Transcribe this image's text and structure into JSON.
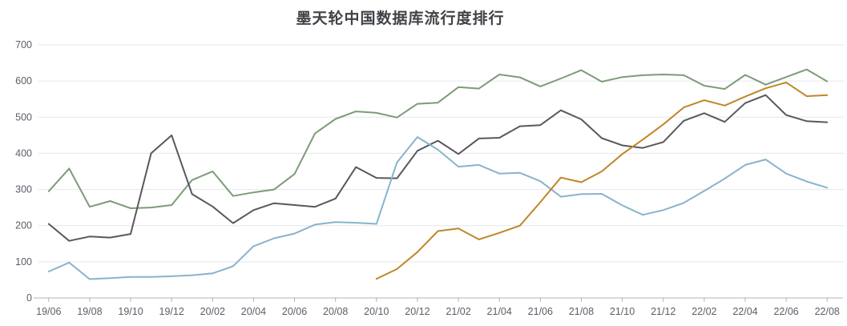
{
  "chart": {
    "background": "#ffffff",
    "title_color": "#404347",
    "grid_color": "#e4e7ec",
    "axis_line_color": "#b0b3b8",
    "axis_label_color": "#5b5e66",
    "line_width": 2
  },
  "chart_data": {
    "type": "line",
    "title": "墨天轮中国数据库流行度排行",
    "xlabel": "",
    "ylabel": "",
    "ylim": [
      0,
      700
    ],
    "y_ticks": [
      0,
      100,
      200,
      300,
      400,
      500,
      600,
      700
    ],
    "grid": true,
    "legend": false,
    "x": [
      "19/06",
      "19/07",
      "19/08",
      "19/09",
      "19/10",
      "19/11",
      "19/12",
      "20/01",
      "20/02",
      "20/03",
      "20/04",
      "20/05",
      "20/06",
      "20/07",
      "20/08",
      "20/09",
      "20/10",
      "20/11",
      "20/12",
      "21/01",
      "21/02",
      "21/03",
      "21/04",
      "21/05",
      "21/06",
      "21/07",
      "21/08",
      "21/09",
      "21/10",
      "21/11",
      "21/12",
      "22/01",
      "22/02",
      "22/03",
      "22/04",
      "22/05",
      "22/06",
      "22/07",
      "22/08"
    ],
    "x_axis_visible_labels": [
      "19/06",
      "19/08",
      "19/10",
      "19/12",
      "20/02",
      "20/04",
      "20/06",
      "20/08",
      "20/10",
      "20/12",
      "21/02",
      "21/04",
      "21/06",
      "21/08",
      "21/10",
      "21/12",
      "22/02",
      "22/04",
      "22/06",
      "22/08"
    ],
    "series": [
      {
        "name": "green-series",
        "color": "#7d9b78",
        "values": [
          295,
          358,
          252,
          268,
          248,
          250,
          257,
          326,
          350,
          282,
          292,
          300,
          343,
          455,
          495,
          516,
          512,
          499,
          537,
          540,
          583,
          579,
          618,
          610,
          585,
          607,
          630,
          598,
          611,
          616,
          618,
          616,
          587,
          578,
          617,
          590,
          611,
          632,
          599
        ]
      },
      {
        "name": "dark-gray-series",
        "color": "#58585f",
        "values": [
          205,
          158,
          170,
          167,
          177,
          400,
          450,
          287,
          253,
          207,
          243,
          262,
          257,
          252,
          275,
          362,
          332,
          331,
          407,
          435,
          398,
          441,
          443,
          475,
          478,
          519,
          494,
          442,
          422,
          415,
          431,
          490,
          511,
          487,
          539,
          561,
          506,
          489,
          486
        ]
      },
      {
        "name": "light-blue-series",
        "color": "#88b4ca",
        "values": [
          73,
          98,
          52,
          55,
          58,
          58,
          60,
          63,
          68,
          88,
          143,
          165,
          178,
          203,
          210,
          208,
          205,
          375,
          445,
          410,
          363,
          368,
          344,
          346,
          323,
          280,
          287,
          288,
          256,
          230,
          243,
          263,
          296,
          330,
          368,
          383,
          344,
          322,
          305
        ]
      },
      {
        "name": "orange-series",
        "color": "#c08628",
        "values": [
          null,
          null,
          null,
          null,
          null,
          null,
          null,
          null,
          null,
          null,
          null,
          null,
          null,
          null,
          null,
          null,
          53,
          80,
          127,
          185,
          192,
          162,
          180,
          200,
          265,
          333,
          320,
          350,
          398,
          438,
          480,
          527,
          547,
          532,
          557,
          580,
          596,
          558,
          561
        ]
      }
    ]
  }
}
